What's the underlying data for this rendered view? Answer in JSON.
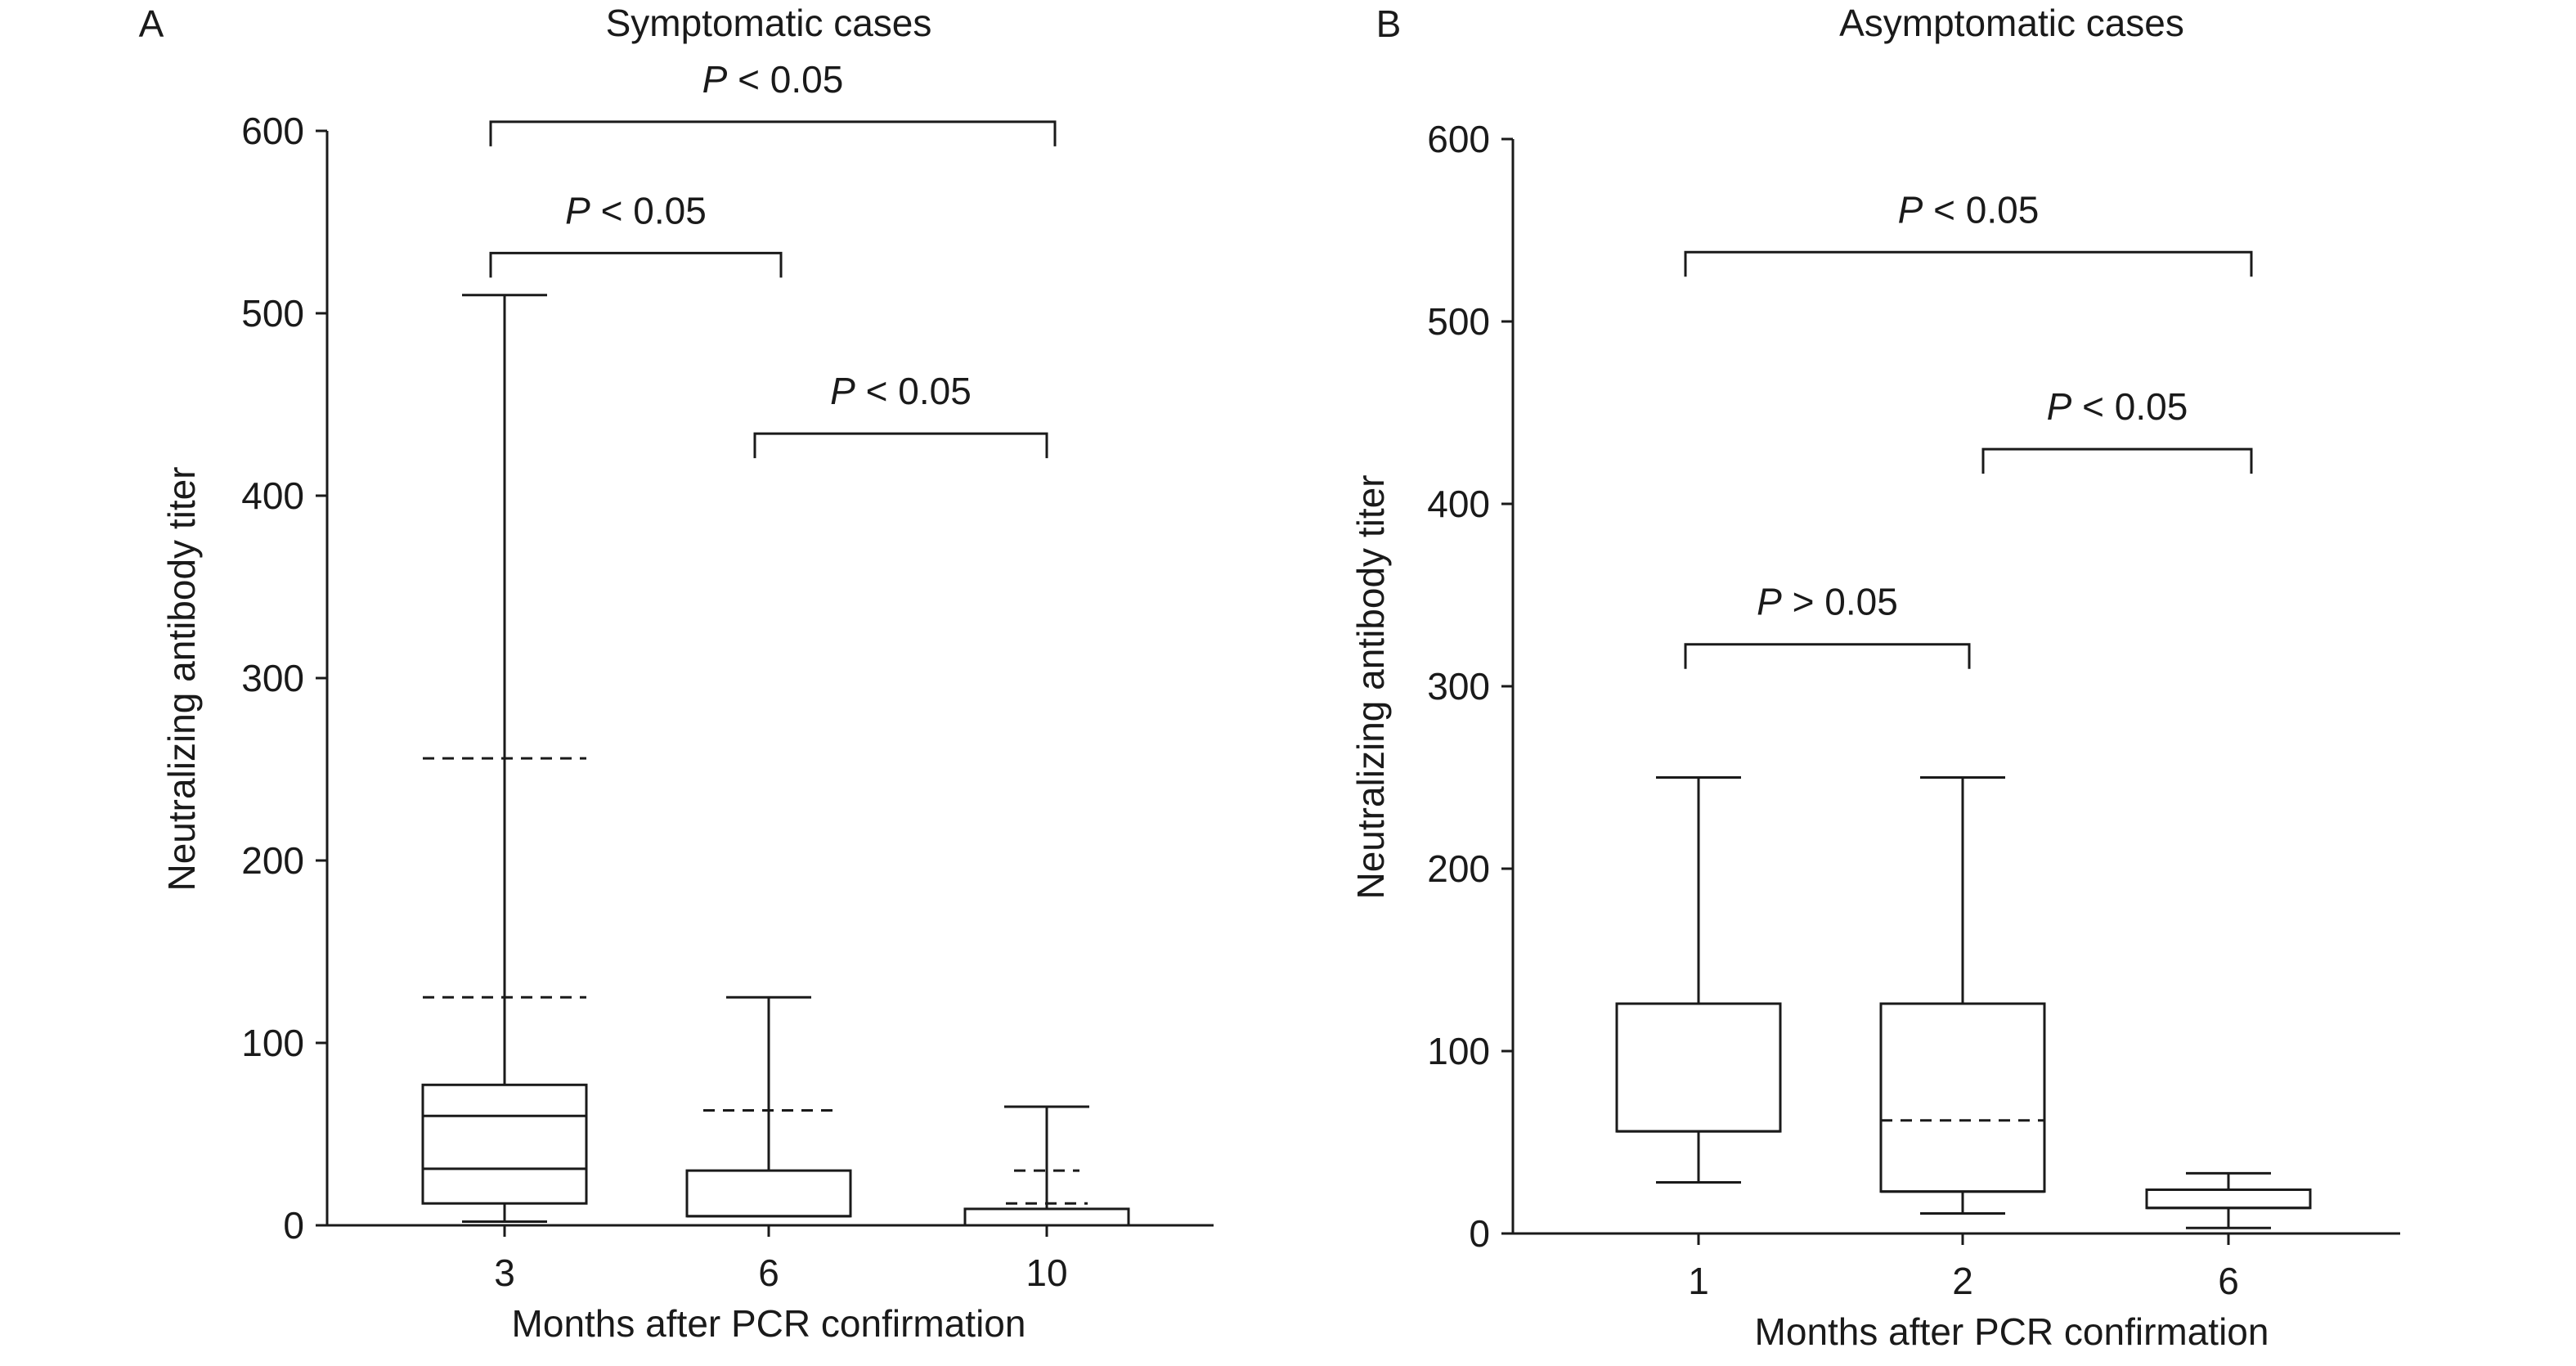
{
  "chart_data": [
    {
      "panel_label": "A",
      "type": "box",
      "title": "Symptomatic cases",
      "xlabel": "Months after PCR confirmation",
      "ylabel": "Neutralizing antibody titer",
      "ylim": [
        0,
        600
      ],
      "yticks": [
        "0",
        "100",
        "200",
        "300",
        "400",
        "500",
        "600"
      ],
      "categories": [
        "3",
        "6",
        "10"
      ],
      "boxes": [
        {
          "category": "3",
          "min": 2,
          "q1": 12,
          "median": 31,
          "q3": 77,
          "max": 510,
          "dashed": [
            125,
            256
          ],
          "inner": [
            60
          ]
        },
        {
          "category": "6",
          "min": 5,
          "q1": 5,
          "median": 5,
          "q3": 30,
          "max": 125,
          "dashed": [
            63
          ]
        },
        {
          "category": "10",
          "min": 0,
          "q1": 0,
          "median": 0,
          "q3": 9,
          "max": 65,
          "dashed": [
            12,
            30
          ]
        }
      ],
      "comparisons": [
        {
          "from": "3",
          "to": "10",
          "label": "P < 0.05",
          "y": 605
        },
        {
          "from": "3",
          "to": "6",
          "label": "P < 0.05",
          "y": 533
        },
        {
          "from": "6",
          "to": "10",
          "label": "P < 0.05",
          "y": 434
        }
      ]
    },
    {
      "panel_label": "B",
      "type": "box",
      "title": "Asymptomatic cases",
      "xlabel": "Months after PCR confirmation",
      "ylabel": "Neutralizing antibody titer",
      "ylim": [
        0,
        600
      ],
      "yticks": [
        "0",
        "100",
        "200",
        "300",
        "400",
        "500",
        "600"
      ],
      "categories": [
        "1",
        "2",
        "6"
      ],
      "boxes": [
        {
          "category": "1",
          "min": 28,
          "q1": 56,
          "median": 56,
          "q3": 126,
          "max": 250
        },
        {
          "category": "2",
          "min": 11,
          "q1": 23,
          "median": 23,
          "q3": 126,
          "max": 250,
          "dashed": [
            62
          ]
        },
        {
          "category": "6",
          "min": 3,
          "q1": 14,
          "median": 14,
          "q3": 24,
          "max": 33
        }
      ],
      "comparisons": [
        {
          "from": "1",
          "to": "6",
          "label": "P < 0.05",
          "y": 538
        },
        {
          "from": "2",
          "to": "6",
          "label": "P < 0.05",
          "y": 430
        },
        {
          "from": "1",
          "to": "2",
          "label": "P > 0.05",
          "y": 323
        }
      ]
    }
  ]
}
